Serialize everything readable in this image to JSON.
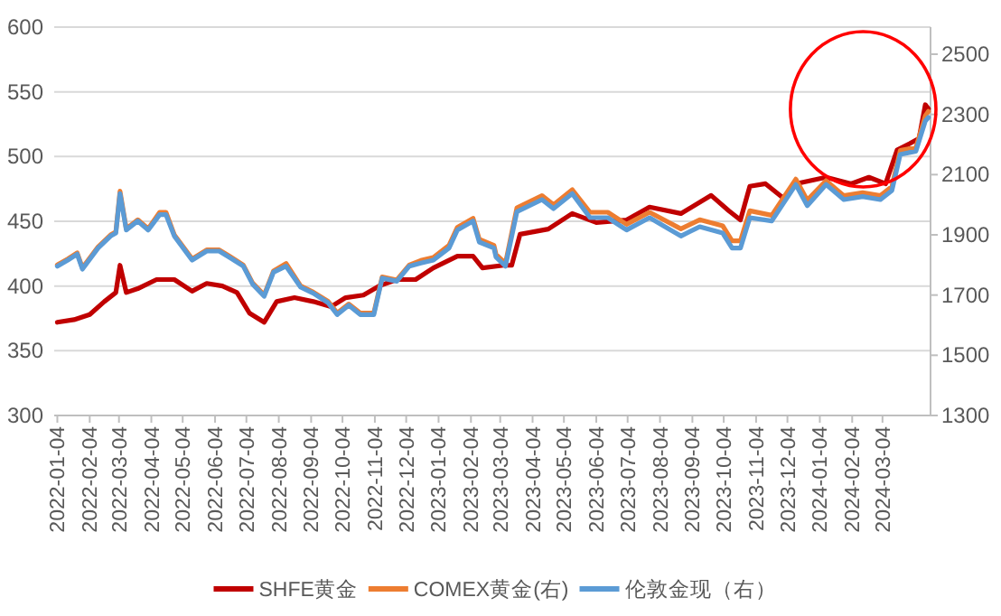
{
  "chart_data": {
    "type": "line",
    "xlim": [
      "2022-01-01",
      "2024-04-19"
    ],
    "xticks": [
      "2022-01-04",
      "2022-02-04",
      "2022-03-04",
      "2022-04-04",
      "2022-05-04",
      "2022-06-04",
      "2022-07-04",
      "2022-08-04",
      "2022-09-04",
      "2022-10-04",
      "2022-11-04",
      "2022-12-04",
      "2023-01-04",
      "2023-02-04",
      "2023-03-04",
      "2023-04-04",
      "2023-05-04",
      "2023-06-04",
      "2023-07-04",
      "2023-08-04",
      "2023-09-04",
      "2023-10-04",
      "2023-11-04",
      "2023-12-04",
      "2024-01-04",
      "2024-02-04",
      "2024-03-04"
    ],
    "ylim": [
      300,
      600
    ],
    "yticks": [
      300,
      350,
      400,
      450,
      500,
      550,
      600
    ],
    "y2lim": [
      1300,
      2590
    ],
    "y2ticks": [
      1300,
      1500,
      1700,
      1900,
      2100,
      2300,
      2500
    ],
    "grid": "y",
    "legend": "bottom",
    "series": [
      {
        "name": "SHFE黄金",
        "color": "#c00000",
        "x": [
          "2022-01-04",
          "2022-01-20",
          "2022-02-04",
          "2022-02-18",
          "2022-03-01",
          "2022-03-05",
          "2022-03-11",
          "2022-03-22",
          "2022-04-09",
          "2022-04-26",
          "2022-05-13",
          "2022-05-27",
          "2022-06-11",
          "2022-06-25",
          "2022-07-07",
          "2022-07-21",
          "2022-08-02",
          "2022-08-19",
          "2022-09-06",
          "2022-09-23",
          "2022-10-07",
          "2022-10-24",
          "2022-11-08",
          "2022-11-25",
          "2022-12-13",
          "2022-12-30",
          "2023-01-22",
          "2023-02-06",
          "2023-02-15",
          "2023-03-07",
          "2023-03-15",
          "2023-03-23",
          "2023-04-19",
          "2023-05-12",
          "2023-06-04",
          "2023-07-03",
          "2023-07-25",
          "2023-08-24",
          "2023-09-22",
          "2023-10-09",
          "2023-10-20",
          "2023-10-29",
          "2023-11-13",
          "2023-11-30",
          "2023-12-12",
          "2024-01-10",
          "2024-02-03",
          "2024-02-20",
          "2024-03-07",
          "2024-03-18",
          "2024-03-30",
          "2024-04-08",
          "2024-04-14",
          "2024-04-17"
        ],
        "values": [
          372,
          374,
          378,
          388,
          395,
          416,
          395,
          398,
          405,
          405,
          396,
          402,
          400,
          395,
          379,
          372,
          388,
          391,
          388,
          384,
          391,
          393,
          400,
          405,
          405,
          414,
          423,
          423,
          414,
          416,
          416,
          440,
          444,
          456,
          449,
          451,
          461,
          456,
          470,
          458,
          451,
          477,
          479,
          468,
          479,
          484,
          479,
          484,
          479,
          505,
          510,
          514,
          540,
          537
        ]
      },
      {
        "name": "COMEX黄金(右)",
        "color": "#ed7d31",
        "axis": "y2",
        "x": [
          "2022-01-04",
          "2022-01-14",
          "2022-01-23",
          "2022-01-28",
          "2022-02-12",
          "2022-02-24",
          "2022-03-01",
          "2022-03-05",
          "2022-03-11",
          "2022-03-22",
          "2022-04-01",
          "2022-04-12",
          "2022-04-18",
          "2022-04-26",
          "2022-05-13",
          "2022-05-27",
          "2022-06-08",
          "2022-06-22",
          "2022-07-01",
          "2022-07-10",
          "2022-07-21",
          "2022-07-30",
          "2022-08-11",
          "2022-08-25",
          "2022-09-06",
          "2022-09-20",
          "2022-09-29",
          "2022-10-10",
          "2022-10-21",
          "2022-11-03",
          "2022-11-11",
          "2022-11-25",
          "2022-12-07",
          "2022-12-18",
          "2022-12-30",
          "2023-01-14",
          "2023-01-22",
          "2023-02-06",
          "2023-02-12",
          "2023-02-26",
          "2023-02-28",
          "2023-03-09",
          "2023-03-20",
          "2023-04-13",
          "2023-04-24",
          "2023-05-12",
          "2023-05-29",
          "2023-06-15",
          "2023-07-03",
          "2023-07-25",
          "2023-08-24",
          "2023-09-11",
          "2023-10-03",
          "2023-10-12",
          "2023-10-20",
          "2023-10-29",
          "2023-11-19",
          "2023-12-12",
          "2023-12-23",
          "2024-01-10",
          "2024-01-27",
          "2024-02-14",
          "2024-03-02",
          "2024-03-13",
          "2024-03-21",
          "2024-04-05",
          "2024-04-14",
          "2024-04-17"
        ],
        "values": [
          1800,
          1820,
          1840,
          1790,
          1860,
          1900,
          1910,
          2045,
          1920,
          1950,
          1920,
          1975,
          1975,
          1900,
          1820,
          1850,
          1850,
          1820,
          1800,
          1740,
          1700,
          1780,
          1805,
          1730,
          1710,
          1680,
          1640,
          1670,
          1640,
          1640,
          1760,
          1750,
          1800,
          1815,
          1825,
          1865,
          1925,
          1955,
          1885,
          1865,
          1835,
          1805,
          1990,
          2030,
          2000,
          2050,
          1975,
          1975,
          1935,
          1975,
          1920,
          1950,
          1930,
          1880,
          1880,
          1980,
          1965,
          2085,
          2015,
          2080,
          2030,
          2040,
          2030,
          2060,
          2180,
          2190,
          2295,
          2310
        ]
      },
      {
        "name": "伦敦金现（右）",
        "color": "#5b9bd5",
        "axis": "y2",
        "x": [
          "2022-01-04",
          "2022-01-14",
          "2022-01-23",
          "2022-01-28",
          "2022-02-12",
          "2022-02-24",
          "2022-03-01",
          "2022-03-05",
          "2022-03-11",
          "2022-03-22",
          "2022-04-01",
          "2022-04-12",
          "2022-04-18",
          "2022-04-26",
          "2022-05-13",
          "2022-05-27",
          "2022-06-08",
          "2022-06-22",
          "2022-07-01",
          "2022-07-10",
          "2022-07-21",
          "2022-07-30",
          "2022-08-11",
          "2022-08-25",
          "2022-09-06",
          "2022-09-20",
          "2022-09-29",
          "2022-10-10",
          "2022-10-21",
          "2022-11-03",
          "2022-11-11",
          "2022-11-25",
          "2022-12-07",
          "2022-12-18",
          "2022-12-30",
          "2023-01-14",
          "2023-01-22",
          "2023-02-06",
          "2023-02-12",
          "2023-02-26",
          "2023-02-28",
          "2023-03-09",
          "2023-03-20",
          "2023-04-13",
          "2023-04-24",
          "2023-05-12",
          "2023-05-29",
          "2023-06-15",
          "2023-07-03",
          "2023-07-25",
          "2023-08-24",
          "2023-09-11",
          "2023-10-03",
          "2023-10-12",
          "2023-10-20",
          "2023-10-29",
          "2023-11-19",
          "2023-12-12",
          "2023-12-23",
          "2024-01-10",
          "2024-01-27",
          "2024-02-14",
          "2024-03-02",
          "2024-03-13",
          "2024-03-21",
          "2024-04-05",
          "2024-04-14",
          "2024-04-17"
        ],
        "values": [
          1796,
          1816,
          1836,
          1786,
          1856,
          1896,
          1906,
          2037,
          1916,
          1946,
          1916,
          1967,
          1967,
          1896,
          1816,
          1846,
          1846,
          1816,
          1796,
          1736,
          1696,
          1776,
          1796,
          1726,
          1706,
          1675,
          1635,
          1666,
          1635,
          1635,
          1756,
          1746,
          1796,
          1806,
          1816,
          1856,
          1916,
          1946,
          1876,
          1856,
          1826,
          1796,
          1977,
          2017,
          1987,
          2037,
          1957,
          1957,
          1916,
          1957,
          1896,
          1927,
          1906,
          1856,
          1856,
          1957,
          1946,
          2067,
          1997,
          2067,
          2017,
          2027,
          2017,
          2047,
          2167,
          2178,
          2278,
          2290
        ]
      }
    ]
  }
}
